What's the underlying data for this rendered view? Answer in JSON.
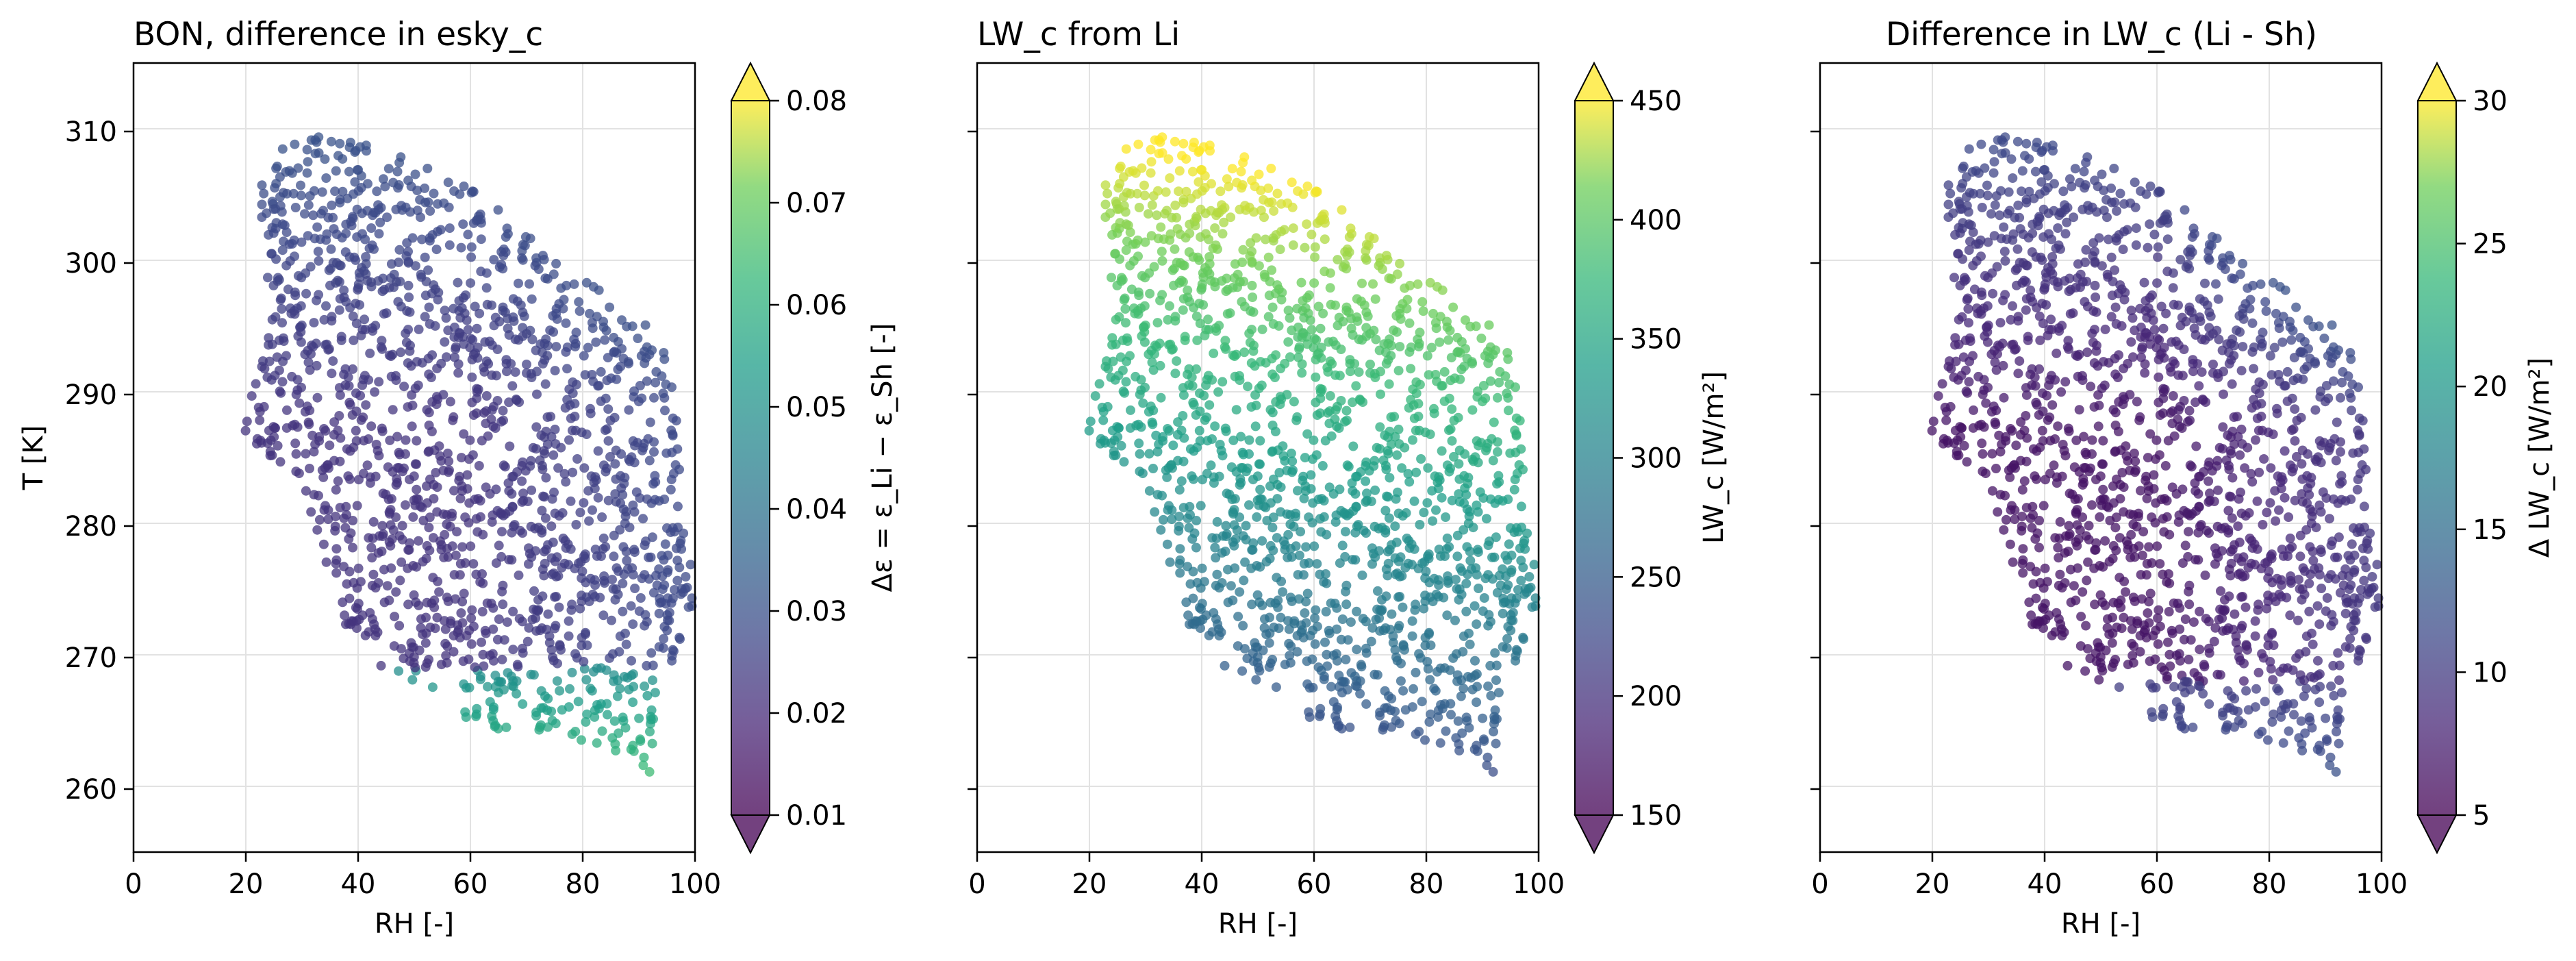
{
  "figure": {
    "panels": [
      {
        "title": "BON, difference in esky_c",
        "xlabel": "RH [-]",
        "ylabel": "T [K]",
        "colorbar_label": "Δε = ε_Li − ε_Sh [-]",
        "colorbar_ticks": [
          "0.01",
          "0.02",
          "0.03",
          "0.04",
          "0.05",
          "0.06",
          "0.07",
          "0.08"
        ]
      },
      {
        "title": "LW_c from Li",
        "xlabel": "RH [-]",
        "ylabel": "",
        "colorbar_label": "LW_c [W/m²]",
        "colorbar_ticks": [
          "150",
          "200",
          "250",
          "300",
          "350",
          "400",
          "450"
        ]
      },
      {
        "title": "Difference in LW_c (Li - Sh)",
        "xlabel": "RH [-]",
        "ylabel": "",
        "colorbar_label": "Δ LW_c [W/m²]",
        "colorbar_ticks": [
          "5",
          "10",
          "15",
          "20",
          "25",
          "30"
        ]
      }
    ],
    "x_ticks": [
      "0",
      "20",
      "40",
      "60",
      "80",
      "100"
    ],
    "y_ticks": [
      "260",
      "270",
      "280",
      "290",
      "300",
      "310"
    ]
  },
  "chart_data": [
    {
      "type": "scatter",
      "title": "BON, difference in esky_c",
      "xlabel": "RH [-]",
      "ylabel": "T [K]",
      "xlim": [
        0,
        100
      ],
      "ylim": [
        255,
        315
      ],
      "grid": true,
      "colormap": "viridis",
      "color_variable": "Δε = ε_Li − ε_Sh [-]",
      "clim": [
        0.01,
        0.08
      ],
      "colorbar_extend": "both",
      "point_cloud_outline": [
        [
          28,
          310
        ],
        [
          40,
          309
        ],
        [
          60,
          306
        ],
        [
          75,
          300
        ],
        [
          90,
          296
        ],
        [
          96,
          292
        ],
        [
          98,
          282
        ],
        [
          100,
          274
        ],
        [
          95,
          268
        ],
        [
          92,
          261
        ],
        [
          84,
          263
        ],
        [
          74,
          264
        ],
        [
          66,
          264
        ],
        [
          60,
          265
        ],
        [
          52,
          267
        ],
        [
          40,
          270
        ],
        [
          36,
          274
        ],
        [
          30,
          283
        ],
        [
          24,
          285
        ],
        [
          18,
          288
        ],
        [
          22,
          291
        ],
        [
          24,
          297
        ],
        [
          22,
          305
        ]
      ],
      "color_trend": "lowest (≈0.02) at high T / mid RH, rising to ≈0.03–0.04 toward the upper-right edge and to ≈0.05–0.06 at the coldest points (T < 268 K)"
    },
    {
      "type": "scatter",
      "title": "LW_c from Li",
      "xlabel": "RH [-]",
      "ylabel": "",
      "xlim": [
        0,
        100
      ],
      "ylim": [
        255,
        315
      ],
      "grid": true,
      "colormap": "viridis",
      "color_variable": "LW_c [W/m²]",
      "clim": [
        150,
        450
      ],
      "colorbar_extend": "both",
      "point_cloud_outline": [
        [
          28,
          310
        ],
        [
          40,
          309
        ],
        [
          60,
          306
        ],
        [
          75,
          300
        ],
        [
          90,
          296
        ],
        [
          96,
          292
        ],
        [
          98,
          282
        ],
        [
          100,
          274
        ],
        [
          95,
          268
        ],
        [
          92,
          261
        ],
        [
          84,
          263
        ],
        [
          74,
          264
        ],
        [
          66,
          264
        ],
        [
          60,
          265
        ],
        [
          52,
          267
        ],
        [
          40,
          270
        ],
        [
          36,
          274
        ],
        [
          30,
          283
        ],
        [
          24,
          285
        ],
        [
          18,
          288
        ],
        [
          22,
          291
        ],
        [
          24,
          297
        ],
        [
          22,
          305
        ]
      ],
      "color_trend": "increases with T and RH: ≈180–200 at the coldest points, ≈300 near 285 K, up to ≈430–450 at the top (T ≈ 310 K)"
    },
    {
      "type": "scatter",
      "title": "Difference in LW_c (Li - Sh)",
      "xlabel": "RH [-]",
      "ylabel": "",
      "xlim": [
        0,
        100
      ],
      "ylim": [
        255,
        315
      ],
      "grid": true,
      "colormap": "viridis",
      "color_variable": "Δ LW_c [W/m²]",
      "clim": [
        5,
        30
      ],
      "colorbar_extend": "both",
      "point_cloud_outline": [
        [
          28,
          310
        ],
        [
          40,
          309
        ],
        [
          60,
          306
        ],
        [
          75,
          300
        ],
        [
          90,
          296
        ],
        [
          96,
          292
        ],
        [
          98,
          282
        ],
        [
          100,
          274
        ],
        [
          95,
          268
        ],
        [
          92,
          261
        ],
        [
          84,
          263
        ],
        [
          74,
          264
        ],
        [
          66,
          264
        ],
        [
          60,
          265
        ],
        [
          52,
          267
        ],
        [
          40,
          270
        ],
        [
          36,
          274
        ],
        [
          30,
          283
        ],
        [
          24,
          285
        ],
        [
          18,
          288
        ],
        [
          22,
          291
        ],
        [
          24,
          297
        ],
        [
          22,
          305
        ]
      ],
      "color_trend": "≈6–8 over most of the cloud, increasing to ≈12–18 toward the upper-right (high T, high RH) and ≈10–12 at the coldest points"
    }
  ]
}
